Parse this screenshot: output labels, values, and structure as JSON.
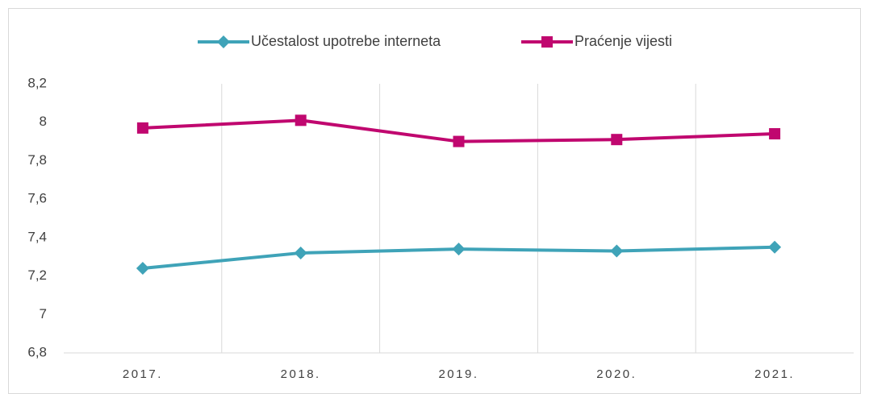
{
  "chart_data": {
    "type": "line",
    "categories": [
      "2017.",
      "2018.",
      "2019.",
      "2020.",
      "2021."
    ],
    "series": [
      {
        "name": "Učestalost upotrebe interneta",
        "color": "#3fa3b8",
        "marker": "diamond",
        "values": [
          7.24,
          7.32,
          7.34,
          7.33,
          7.35
        ]
      },
      {
        "name": "Praćenje vijesti",
        "color": "#c0076f",
        "marker": "square",
        "values": [
          7.97,
          8.01,
          7.9,
          7.91,
          7.94
        ]
      }
    ],
    "ylim": [
      6.8,
      8.2
    ],
    "yticks": [
      {
        "value": 6.8,
        "label": "6,8"
      },
      7,
      {
        "value": 7.2,
        "label": "7,2"
      },
      {
        "value": 7.4,
        "label": "7,4"
      },
      {
        "value": 7.6,
        "label": "7,6"
      },
      {
        "value": 7.8,
        "label": "7,8"
      },
      8,
      {
        "value": 8.2,
        "label": "8,2"
      }
    ],
    "legend": "top"
  }
}
